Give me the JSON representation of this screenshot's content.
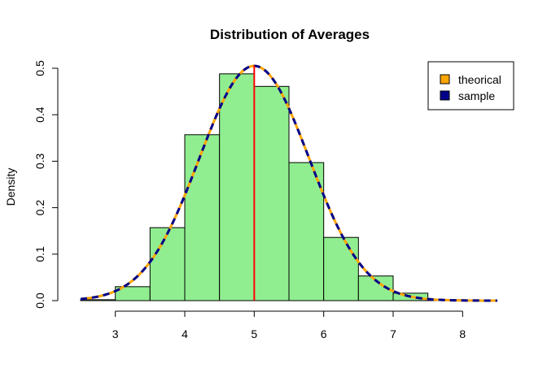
{
  "chart_data": {
    "type": "histogram",
    "title": "Distribution of Averages",
    "xlabel": "",
    "ylabel": "Density",
    "xlim": [
      2.5,
      8.5
    ],
    "ylim": [
      0,
      0.5
    ],
    "x_ticks": [
      "3",
      "4",
      "5",
      "6",
      "7",
      "8"
    ],
    "y_ticks": [
      "0.0",
      "0.1",
      "0.2",
      "0.3",
      "0.4",
      "0.5"
    ],
    "bins": [
      {
        "from": 2.5,
        "to": 3.0,
        "density": 0.002
      },
      {
        "from": 3.0,
        "to": 3.5,
        "density": 0.03
      },
      {
        "from": 3.5,
        "to": 4.0,
        "density": 0.157
      },
      {
        "from": 4.0,
        "to": 4.5,
        "density": 0.357
      },
      {
        "from": 4.5,
        "to": 5.0,
        "density": 0.488
      },
      {
        "from": 5.0,
        "to": 5.5,
        "density": 0.461
      },
      {
        "from": 5.5,
        "to": 6.0,
        "density": 0.297
      },
      {
        "from": 6.0,
        "to": 6.5,
        "density": 0.136
      },
      {
        "from": 6.5,
        "to": 7.0,
        "density": 0.053
      },
      {
        "from": 7.0,
        "to": 7.5,
        "density": 0.016
      },
      {
        "from": 7.5,
        "to": 8.0,
        "density": 0.002
      }
    ],
    "bar_color": "#90EE90",
    "mean_line": {
      "x": 5.0,
      "color": "#FF0000"
    },
    "curves": [
      {
        "name": "theorical",
        "mean": 5.0,
        "sd": 0.79,
        "color": "#FFA500",
        "style": "solid"
      },
      {
        "name": "sample",
        "mean": 5.0,
        "sd": 0.79,
        "color": "#00008B",
        "style": "dashed"
      }
    ],
    "curve_x_range": [
      2.5,
      8.5
    ],
    "legend": {
      "position": "top-right",
      "entries": [
        {
          "label": "theorical",
          "color": "#FFA500"
        },
        {
          "label": "sample",
          "color": "#00008B"
        }
      ]
    }
  }
}
